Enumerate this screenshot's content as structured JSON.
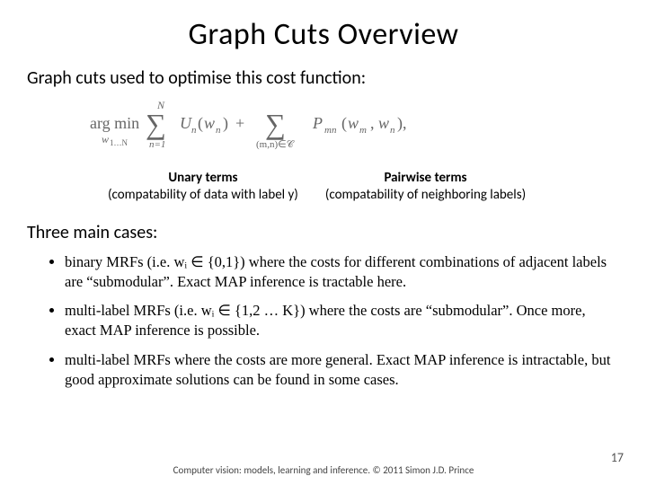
{
  "title": "Graph Cuts Overview",
  "intro": "Graph cuts used to optimise this cost function:",
  "equation": {
    "argmin_label": "arg min",
    "argmin_sub": "w₁…N",
    "sum1_upper": "N",
    "sum1_lower": "n=1",
    "unary": "Uₙ(wₙ)",
    "plus": "+",
    "sum2_lower": "(m,n)∈C",
    "pairwise": "Pₘₙ(wₘ, wₙ),",
    "text_color": "#666666",
    "font_family_serif": "Times New Roman",
    "fontsize": 17
  },
  "terms": {
    "unary": {
      "title": "Unary terms",
      "sub": "(compatability of data with label y)"
    },
    "pairwise": {
      "title": "Pairwise terms",
      "sub": "(compatability of neighboring labels)"
    }
  },
  "cases_heading": "Three main cases:",
  "bullets": [
    "binary MRFs (i.e. wᵢ ∈ {0,1}) where the costs for different combinations of adjacent labels are “submodular”. Exact MAP inference is tractable here.",
    "multi-label MRFs (i.e. wᵢ ∈ {1,2 … K}) where the costs are “submodular”. Once more, exact MAP inference is possible.",
    "multi-label MRFs where the costs are more general. Exact MAP inference is intractable, but good approximate solutions can be found in some cases."
  ],
  "footer": "Computer vision: models, learning and inference.  © 2011 Simon J.D. Prince",
  "page_number": "17",
  "colors": {
    "background": "#ffffff",
    "text": "#000000",
    "equation_text": "#666666",
    "footer_text": "#444444",
    "pagenum_text": "#555555"
  }
}
